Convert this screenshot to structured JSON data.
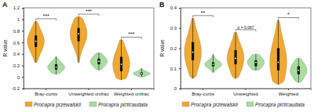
{
  "chart_data": [
    {
      "type": "violin",
      "title": "A",
      "y_label": "R value",
      "categories": [
        "Bray-curtis",
        "Unweighted unifrac",
        "Weighted unifrac"
      ],
      "series": [
        {
          "name": "Procapra przewalskii",
          "color": "#f0a830",
          "min": [
            0.25,
            0.25,
            -0.05
          ],
          "q1": [
            0.52,
            0.62,
            0.1
          ],
          "median": [
            0.62,
            0.75,
            0.22
          ],
          "q3": [
            0.72,
            0.85,
            0.35
          ],
          "max": [
            0.97,
            1.05,
            0.65
          ]
        },
        {
          "name": "Procapra picticaudata",
          "color": "#a8dca0",
          "min": [
            0.05,
            0.12,
            0.0
          ],
          "q1": [
            0.13,
            0.22,
            0.04
          ],
          "median": [
            0.17,
            0.27,
            0.06
          ],
          "q3": [
            0.22,
            0.32,
            0.08
          ],
          "max": [
            0.35,
            0.42,
            0.15
          ]
        }
      ],
      "annotations": [
        "***",
        "***",
        "***"
      ],
      "ylim": [
        -0.2,
        1.2
      ],
      "yticks": [
        -0.2,
        0,
        0.2,
        0.4,
        0.6,
        0.8,
        1,
        1.2
      ],
      "legend": "bottom"
    },
    {
      "type": "violin",
      "title": "B",
      "y_label": "R value",
      "categories": [
        "Bray-curtis",
        "Unweighted",
        "Weighted"
      ],
      "series": [
        {
          "name": "Procapra przewalskii",
          "color": "#f0a830",
          "min": [
            0.05,
            0.05,
            0.02
          ],
          "q1": [
            0.14,
            0.12,
            0.09
          ],
          "median": [
            0.18,
            0.15,
            0.13
          ],
          "q3": [
            0.23,
            0.19,
            0.2
          ],
          "max": [
            0.35,
            0.28,
            0.34
          ]
        },
        {
          "name": "Procapra picticaudata",
          "color": "#a8dca0",
          "min": [
            0.08,
            0.09,
            0.03
          ],
          "q1": [
            0.11,
            0.11,
            0.07
          ],
          "median": [
            0.12,
            0.13,
            0.09
          ],
          "q3": [
            0.13,
            0.14,
            0.11
          ],
          "max": [
            0.17,
            0.17,
            0.15
          ]
        }
      ],
      "annotations": [
        "**",
        "p = 0.067",
        "*"
      ],
      "ylim": [
        0,
        0.4
      ],
      "yticks": [
        0,
        0.1,
        0.2,
        0.3,
        0.4
      ],
      "legend": "bottom"
    }
  ]
}
